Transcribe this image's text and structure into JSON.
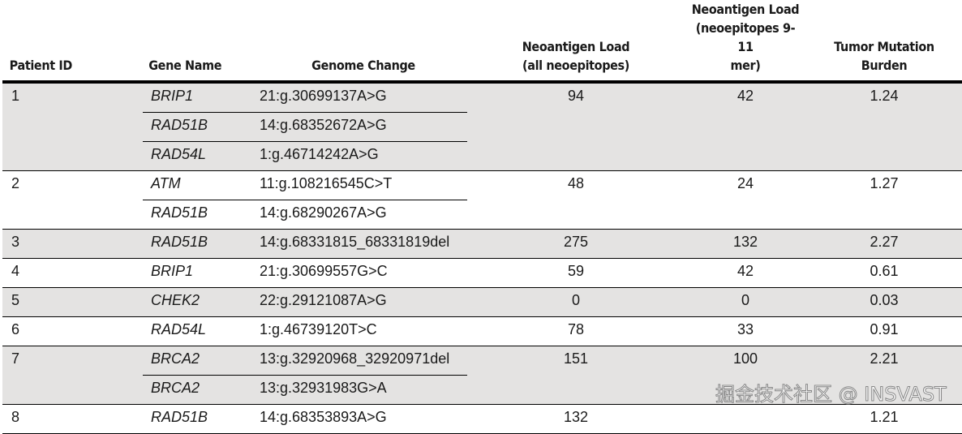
{
  "headers": {
    "patient_id": "Patient ID",
    "gene_name": "Gene Name",
    "genome_change": "Genome Change",
    "neo_all": [
      "Neoantigen Load",
      "(all neoepitopes)"
    ],
    "neo_9_11": [
      "Neoantigen Load",
      "(neoepitopes 9-11",
      "mer)"
    ],
    "tmb": [
      "Tumor Mutation",
      "Burden"
    ]
  },
  "rows": [
    {
      "id": "1",
      "mutations": [
        {
          "gene": "BRIP1",
          "change": "21:g.30699137A>G"
        },
        {
          "gene": "RAD51B",
          "change": "14:g.68352672A>G"
        },
        {
          "gene": "RAD54L",
          "change": "1:g.46714242A>G"
        }
      ],
      "neo_all": "94",
      "neo_9_11": "42",
      "tmb": "1.24"
    },
    {
      "id": "2",
      "mutations": [
        {
          "gene": "ATM",
          "change": "11:g.108216545C>T"
        },
        {
          "gene": "RAD51B",
          "change": "14:g.68290267A>G"
        }
      ],
      "neo_all": "48",
      "neo_9_11": "24",
      "tmb": "1.27"
    },
    {
      "id": "3",
      "mutations": [
        {
          "gene": "RAD51B",
          "change": "14:g.68331815_68331819del"
        }
      ],
      "neo_all": "275",
      "neo_9_11": "132",
      "tmb": "2.27"
    },
    {
      "id": "4",
      "mutations": [
        {
          "gene": "BRIP1",
          "change": "21:g.30699557G>C"
        }
      ],
      "neo_all": "59",
      "neo_9_11": "42",
      "tmb": "0.61"
    },
    {
      "id": "5",
      "mutations": [
        {
          "gene": "CHEK2",
          "change": "22:g.29121087A>G"
        }
      ],
      "neo_all": "0",
      "neo_9_11": "0",
      "tmb": "0.03"
    },
    {
      "id": "6",
      "mutations": [
        {
          "gene": "RAD54L",
          "change": "1:g.46739120T>C"
        }
      ],
      "neo_all": "78",
      "neo_9_11": "33",
      "tmb": "0.91"
    },
    {
      "id": "7",
      "mutations": [
        {
          "gene": "BRCA2",
          "change": "13:g.32920968_32920971del"
        },
        {
          "gene": "BRCA2",
          "change": "13:g.32931983G>A"
        }
      ],
      "neo_all": "151",
      "neo_9_11": "100",
      "tmb": "2.21"
    },
    {
      "id": "8",
      "mutations": [
        {
          "gene": "RAD51B",
          "change": "14:g.68353893A>G"
        }
      ],
      "neo_all": "132",
      "neo_9_11": "",
      "tmb": "1.21"
    }
  ],
  "shade_color": "#e4e3e2",
  "watermark": "掘金技术社区 @ INSVAST"
}
